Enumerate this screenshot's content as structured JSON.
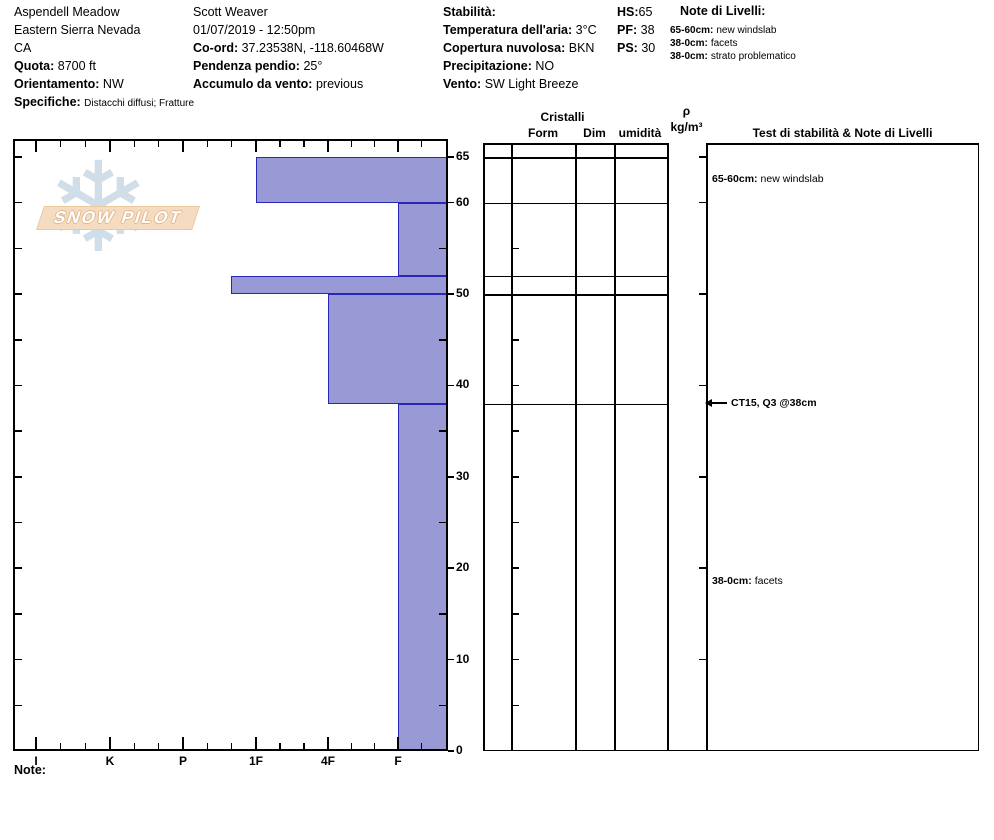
{
  "header": {
    "location": {
      "name": "Aspendell Meadow",
      "region": "Eastern Sierra Nevada",
      "state": "CA",
      "quota_label": "Quota:",
      "quota_value": "8700 ft",
      "orientamento_label": "Orientamento:",
      "orientamento_value": "NW",
      "specifiche_label": "Specifiche:",
      "specifiche_value": "Distacchi diffusi; Fratture"
    },
    "observation": {
      "observer": "Scott Weaver",
      "datetime": "01/07/2019 - 12:50pm",
      "coord_label": "Co-ord:",
      "coord_value": "37.23538N, -118.60468W",
      "pendenza_label": "Pendenza pendio:",
      "pendenza_value": "25°",
      "accumulo_label": "Accumulo da vento:",
      "accumulo_value": "previous"
    },
    "conditions": {
      "stabilita_label": "Stabilità:",
      "temperatura_label": "Temperatura dell'aria:",
      "temperatura_value": "3°C",
      "copertura_label": "Copertura nuvolosa:",
      "copertura_value": "BKN",
      "precipitazione_label": "Precipitazione:",
      "precipitazione_value": "NO",
      "vento_label": "Vento:",
      "vento_value": "SW Light Breeze"
    },
    "measurements": {
      "hs_label": "HS:",
      "hs_value": "65",
      "pf_label": "PF:",
      "pf_value": "38",
      "ps_label": "PS:",
      "ps_value": "30"
    },
    "level_notes": {
      "title": "Note di Livelli:",
      "items": [
        {
          "range": "65-60cm:",
          "text": "new windslab"
        },
        {
          "range": "38-0cm:",
          "text": "facets"
        },
        {
          "range": "38-0cm:",
          "text": "strato problematico"
        }
      ]
    }
  },
  "watermark": {
    "text": "SNOW PILOT"
  },
  "chart_data": {
    "type": "bar",
    "description": "Snowpit hand-hardness profile: depth (cm) vs hardness; harder layers extend further left",
    "hardness_categories": [
      "I",
      "K",
      "P",
      "1F",
      "4F",
      "F"
    ],
    "depth_ticks": [
      65,
      60,
      50,
      40,
      30,
      20,
      10,
      0
    ],
    "ylim": [
      0,
      65
    ],
    "total_depth_cm": 65,
    "layers": [
      {
        "top_cm": 65,
        "bottom_cm": 60,
        "hardness": "1F",
        "note": "new windslab"
      },
      {
        "top_cm": 60,
        "bottom_cm": 52,
        "hardness": "F",
        "note": ""
      },
      {
        "top_cm": 52,
        "bottom_cm": 50,
        "hardness": "1F+",
        "note": ""
      },
      {
        "top_cm": 50,
        "bottom_cm": 38,
        "hardness": "4F",
        "note": ""
      },
      {
        "top_cm": 38,
        "bottom_cm": 0,
        "hardness": "F",
        "note": "facets"
      }
    ],
    "bar_fill_color": "#9999d6",
    "bar_border_color": "#2828b4",
    "grid": "off",
    "legend": "none"
  },
  "profile_table": {
    "group_header": "Cristalli",
    "col_form": "Form",
    "col_dim": "Dim",
    "col_umidita": "umidità",
    "density_symbol": "ρ",
    "density_unit": "kg/m³",
    "tests_header": "Test di stabilità & Note di Livelli",
    "annotations": [
      {
        "cm": 62.5,
        "range": "65-60cm:",
        "text": "new windslab"
      },
      {
        "cm": 38,
        "arrow": "left",
        "text": "CT15, Q3 @38cm"
      },
      {
        "cm": 18.5,
        "range": "38-0cm:",
        "text": "facets"
      }
    ]
  },
  "footer": {
    "note_label": "Note:"
  }
}
